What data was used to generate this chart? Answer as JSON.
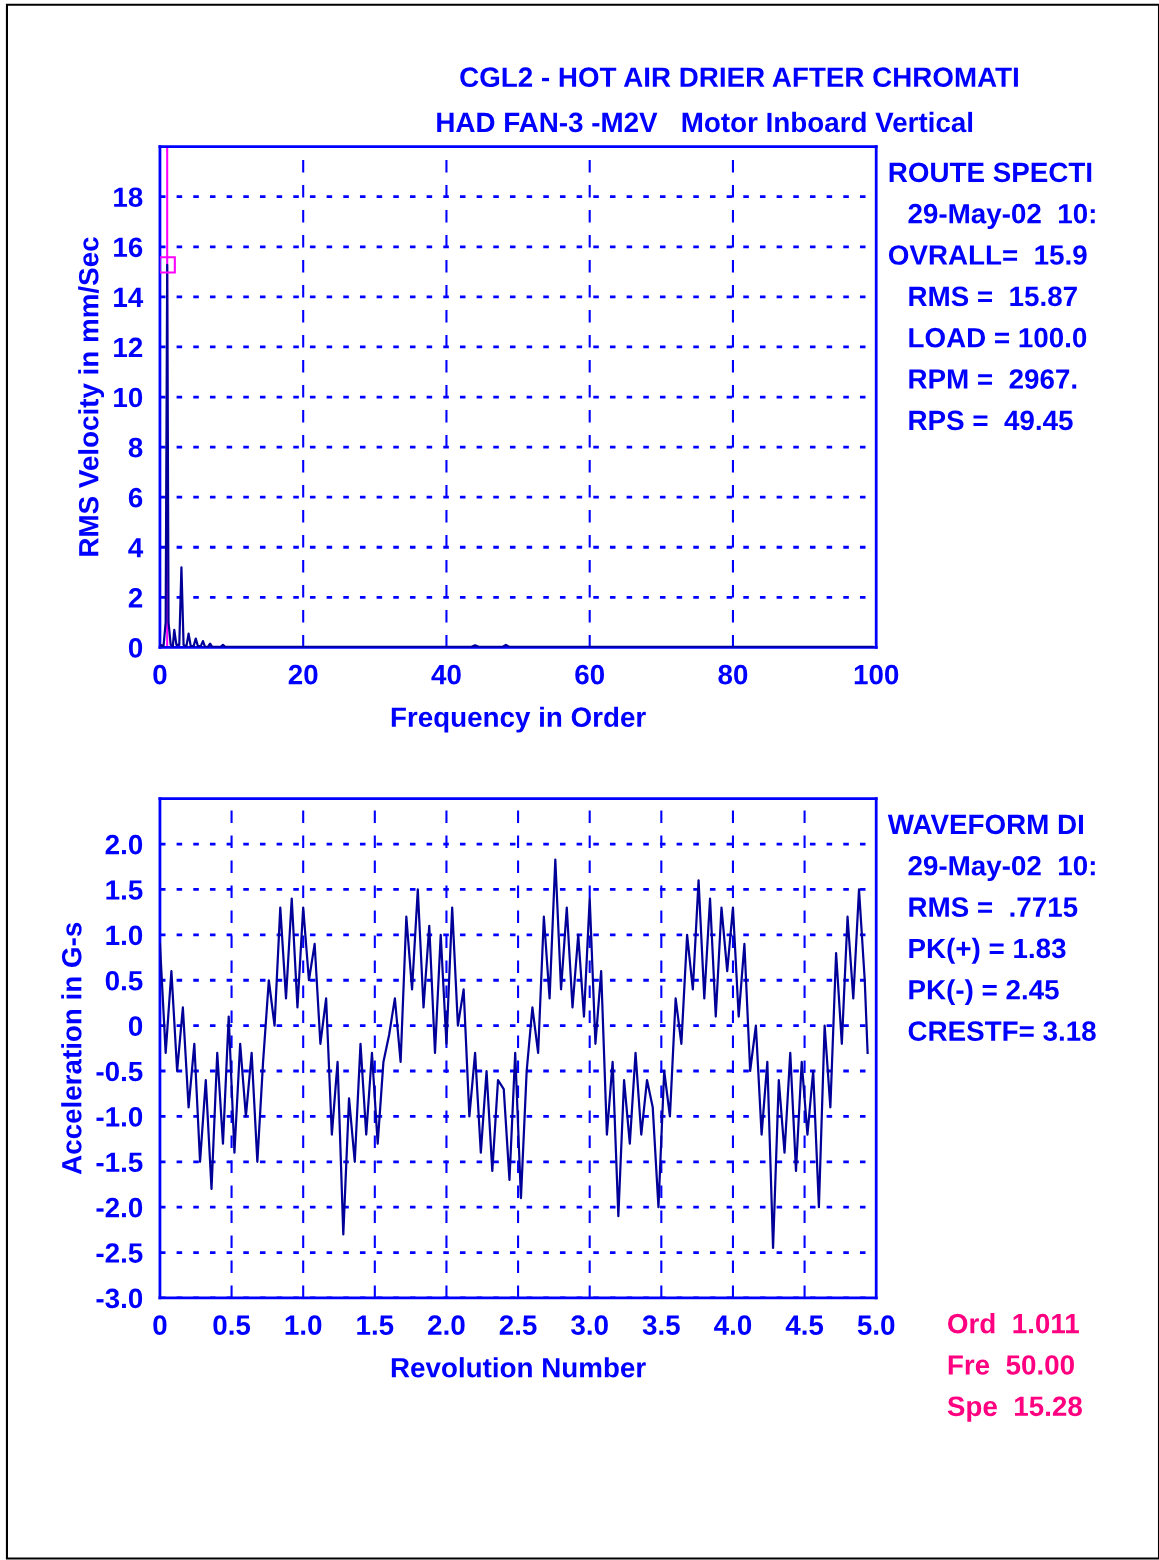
{
  "chart_data": [
    {
      "type": "line",
      "title": "CGL2 - HOT AIR DRIER AFTER CHROMATI",
      "subtitle": "HAD FAN-3 -M2V   Motor Inboard Vertical",
      "xlabel": "Frequency in Order",
      "ylabel": "RMS Velocity in mm/Sec",
      "series": [
        {
          "color": "#000099",
          "x": [
            0,
            0.5,
            0.8,
            1.011,
            1.2,
            1.5,
            1.8,
            2.0,
            2.3,
            2.7,
            3.0,
            3.3,
            3.7,
            4.0,
            4.3,
            4.7,
            5.0,
            5.3,
            5.7,
            6.0,
            6.3,
            6.7,
            7.0,
            7.3,
            8.5,
            8.8,
            9.1,
            43.5,
            44,
            44.5,
            47.8,
            48.3,
            48.8,
            99.5
          ],
          "values": [
            0.1,
            0.05,
            1.0,
            15.28,
            1.0,
            0.1,
            0.05,
            0.7,
            0.1,
            0.1,
            3.2,
            0.1,
            0.05,
            0.55,
            0.05,
            0.05,
            0.35,
            0.05,
            0.05,
            0.25,
            0.02,
            0.02,
            0.15,
            0.02,
            0.02,
            0.1,
            0.02,
            0.02,
            0.08,
            0.02,
            0.02,
            0.1,
            0.02,
            0.02
          ]
        },
        {
          "type": "scatter",
          "marker": "square",
          "color": "#ff00ff",
          "x": [
            1.011
          ],
          "values": [
            15.28
          ]
        }
      ],
      "ref_lines": [
        {
          "axis": "x",
          "value": 1.011,
          "color": "#ff00ff"
        }
      ],
      "xlim": [
        0,
        100
      ],
      "xticks": [
        0,
        20,
        40,
        60,
        80,
        100
      ],
      "ylim": [
        0,
        20
      ],
      "yticks": [
        0,
        2,
        4,
        6,
        8,
        10,
        12,
        14,
        16,
        18
      ],
      "grid": true,
      "legend": false,
      "annotations": [
        "ROUTE SPECTI",
        "29-May-02  10:",
        "OVRALL=  15.9",
        "RMS =  15.87",
        "LOAD = 100.0",
        "RPM =  2967.",
        "RPS =  49.45"
      ]
    },
    {
      "type": "line",
      "xlabel": "Revolution Number",
      "ylabel": "Acceleration in G-s",
      "series": [
        {
          "color": "#000099",
          "x": [
            0.0,
            0.04,
            0.08,
            0.12,
            0.16,
            0.2,
            0.24,
            0.28,
            0.32,
            0.36,
            0.4,
            0.44,
            0.48,
            0.52,
            0.56,
            0.6,
            0.64,
            0.68,
            0.72,
            0.76,
            0.8,
            0.84,
            0.88,
            0.92,
            0.96,
            1.0,
            1.04,
            1.08,
            1.12,
            1.16,
            1.2,
            1.24,
            1.28,
            1.32,
            1.36,
            1.4,
            1.44,
            1.48,
            1.52,
            1.56,
            1.6,
            1.64,
            1.68,
            1.72,
            1.76,
            1.8,
            1.84,
            1.88,
            1.92,
            1.96,
            2.0,
            2.04,
            2.08,
            2.12,
            2.16,
            2.2,
            2.24,
            2.28,
            2.32,
            2.36,
            2.4,
            2.44,
            2.48,
            2.52,
            2.56,
            2.6,
            2.64,
            2.68,
            2.72,
            2.76,
            2.8,
            2.84,
            2.88,
            2.92,
            2.96,
            3.0,
            3.04,
            3.08,
            3.12,
            3.16,
            3.2,
            3.24,
            3.28,
            3.32,
            3.36,
            3.4,
            3.44,
            3.48,
            3.52,
            3.56,
            3.6,
            3.64,
            3.68,
            3.72,
            3.76,
            3.8,
            3.84,
            3.88,
            3.92,
            3.96,
            4.0,
            4.04,
            4.08,
            4.12,
            4.16,
            4.2,
            4.24,
            4.28,
            4.32,
            4.36,
            4.4,
            4.44,
            4.48,
            4.52,
            4.56,
            4.6,
            4.64,
            4.68,
            4.72,
            4.76,
            4.8,
            4.84,
            4.88,
            4.92,
            4.94
          ],
          "values": [
            0.9,
            -0.3,
            0.6,
            -0.5,
            0.2,
            -0.9,
            -0.2,
            -1.5,
            -0.6,
            -1.8,
            -0.3,
            -1.3,
            0.1,
            -1.4,
            -0.2,
            -1.0,
            -0.3,
            -1.5,
            -0.4,
            0.5,
            0.0,
            1.3,
            0.3,
            1.4,
            0.2,
            1.3,
            0.5,
            0.9,
            -0.2,
            0.3,
            -1.2,
            -0.4,
            -2.3,
            -0.8,
            -1.5,
            -0.2,
            -1.2,
            -0.3,
            -1.3,
            -0.4,
            -0.1,
            0.3,
            -0.4,
            1.2,
            0.4,
            1.5,
            0.2,
            1.1,
            -0.3,
            1.0,
            -0.2,
            1.3,
            0.0,
            0.4,
            -1.0,
            -0.3,
            -1.4,
            -0.5,
            -1.6,
            -0.6,
            -0.7,
            -1.7,
            -0.3,
            -1.9,
            -0.5,
            0.2,
            -0.3,
            1.2,
            0.3,
            1.83,
            0.4,
            1.3,
            0.2,
            1.0,
            0.1,
            1.4,
            -0.2,
            0.6,
            -1.2,
            -0.4,
            -2.1,
            -0.6,
            -1.3,
            -0.3,
            -1.2,
            -0.6,
            -0.9,
            -2.0,
            -0.5,
            -1.0,
            0.3,
            -0.2,
            1.0,
            0.4,
            1.6,
            0.3,
            1.4,
            0.1,
            1.3,
            0.6,
            1.3,
            0.1,
            0.9,
            -0.5,
            0.0,
            -1.2,
            -0.4,
            -2.45,
            -0.6,
            -1.4,
            -0.3,
            -1.6,
            -0.4,
            -1.2,
            -0.5,
            -2.0,
            0.0,
            -0.9,
            0.8,
            -0.2,
            1.2,
            0.3,
            1.5,
            0.5,
            -0.3
          ]
        }
      ],
      "xlim": [
        0,
        5
      ],
      "xticks": [
        0,
        0.5,
        {
          "value": 1,
          "label": "1.0"
        },
        1.5,
        {
          "value": 2,
          "label": "2.0"
        },
        2.5,
        {
          "value": 3,
          "label": "3.0"
        },
        3.5,
        {
          "value": 4,
          "label": "4.0"
        },
        4.5,
        {
          "value": 5,
          "label": "5.0"
        }
      ],
      "ylim": [
        -3,
        2.5
      ],
      "yticks": [
        {
          "value": -3,
          "label": "-3.0"
        },
        -2.5,
        {
          "value": -2,
          "label": "-2.0"
        },
        -1.5,
        {
          "value": -1,
          "label": "-1.0"
        },
        -0.5,
        0,
        0.5,
        {
          "value": 1,
          "label": "1.0"
        },
        1.5,
        {
          "value": 2,
          "label": "2.0"
        }
      ],
      "grid": true,
      "legend": false,
      "annotations": [
        "WAVEFORM DI",
        "29-May-02  10:",
        "RMS =  .7715",
        "PK(+) = 1.83",
        "PK(-) = 2.45",
        "CRESTF= 3.18",
        "Ord  1.011",
        "Fre  50.00",
        "Spe  15.28"
      ]
    }
  ]
}
